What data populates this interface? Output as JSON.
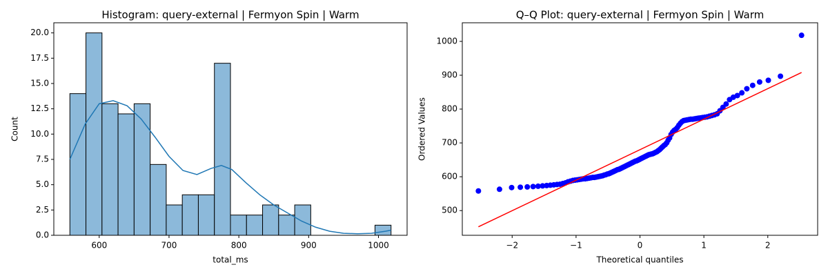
{
  "chart_data": [
    {
      "type": "histogram",
      "title": "Histogram: query-external | Fermyon Spin | Warm",
      "x_label": "total_ms",
      "y_label": "Count",
      "bins": [
        558,
        581,
        604,
        627,
        650,
        673,
        696,
        719,
        742,
        765,
        788,
        811,
        834,
        857,
        880,
        903,
        926,
        949,
        972,
        995,
        1018
      ],
      "values": [
        14,
        20,
        13,
        12,
        13,
        7,
        3,
        4,
        4,
        17,
        2,
        2,
        3,
        2,
        3,
        0,
        0,
        0,
        0,
        1
      ],
      "color": "#8cb9da",
      "edge_color": "#000000",
      "kde": {
        "color": "#1f77b4",
        "x": [
          558,
          580,
          600,
          620,
          640,
          660,
          680,
          700,
          720,
          740,
          760,
          775,
          790,
          810,
          830,
          850,
          870,
          890,
          910,
          930,
          950,
          970,
          990,
          1010,
          1018
        ],
        "y": [
          7.5,
          11,
          13,
          13.3,
          12.8,
          11.5,
          9.7,
          7.8,
          6.4,
          6.0,
          6.6,
          6.9,
          6.5,
          5.2,
          4.0,
          3.0,
          2.2,
          1.4,
          0.8,
          0.4,
          0.2,
          0.15,
          0.2,
          0.4,
          0.5
        ]
      },
      "xlim": [
        535,
        1041
      ],
      "xticks": [
        600,
        700,
        800,
        900,
        1000
      ],
      "ylim": [
        0,
        21
      ],
      "yticks": [
        {
          "value": 0,
          "label": "0.0"
        },
        {
          "value": 2.5,
          "label": "2.5"
        },
        {
          "value": 5,
          "label": "5.0"
        },
        {
          "value": 7.5,
          "label": "7.5"
        },
        {
          "value": 10,
          "label": "10.0"
        },
        {
          "value": 12.5,
          "label": "12.5"
        },
        {
          "value": 15,
          "label": "15.0"
        },
        {
          "value": 17.5,
          "label": "17.5"
        },
        {
          "value": 20,
          "label": "20.0"
        }
      ]
    },
    {
      "type": "scatter",
      "title": "Q–Q Plot: query-external | Fermyon Spin | Warm",
      "x_label": "Theoretical quantiles",
      "y_label": "Ordered Values",
      "color": "#0000ff",
      "x": [
        -2.528,
        -2.198,
        -2.008,
        -1.872,
        -1.763,
        -1.672,
        -1.594,
        -1.524,
        -1.46,
        -1.402,
        -1.348,
        -1.298,
        -1.251,
        -1.207,
        -1.165,
        -1.125,
        -1.087,
        -1.05,
        -1.014,
        -0.98,
        -0.947,
        -0.915,
        -0.884,
        -0.854,
        -0.824,
        -0.795,
        -0.767,
        -0.739,
        -0.712,
        -0.685,
        -0.659,
        -0.633,
        -0.608,
        -0.583,
        -0.559,
        -0.535,
        -0.511,
        -0.487,
        -0.464,
        -0.441,
        -0.418,
        -0.395,
        -0.373,
        -0.351,
        -0.329,
        -0.307,
        -0.285,
        -0.264,
        -0.242,
        -0.221,
        -0.2,
        -0.178,
        -0.157,
        -0.136,
        -0.115,
        -0.094,
        -0.073,
        -0.052,
        -0.031,
        -0.01,
        0.01,
        0.031,
        0.052,
        0.073,
        0.094,
        0.115,
        0.136,
        0.157,
        0.178,
        0.2,
        0.221,
        0.242,
        0.264,
        0.285,
        0.307,
        0.329,
        0.351,
        0.373,
        0.395,
        0.418,
        0.441,
        0.464,
        0.487,
        0.511,
        0.535,
        0.559,
        0.583,
        0.608,
        0.633,
        0.659,
        0.685,
        0.712,
        0.739,
        0.767,
        0.795,
        0.824,
        0.854,
        0.884,
        0.915,
        0.947,
        0.98,
        1.014,
        1.05,
        1.087,
        1.125,
        1.165,
        1.207,
        1.251,
        1.298,
        1.348,
        1.402,
        1.46,
        1.524,
        1.594,
        1.672,
        1.763,
        1.872,
        2.008,
        2.198,
        2.528
      ],
      "values": [
        558,
        563,
        568,
        569,
        570,
        571,
        572,
        573,
        574,
        575,
        576,
        577,
        578,
        580,
        582,
        585,
        587,
        589,
        590,
        591,
        592,
        593,
        594,
        594,
        595,
        596,
        597,
        598,
        598,
        599,
        600,
        601,
        602,
        603,
        605,
        606,
        608,
        609,
        611,
        613,
        615,
        617,
        619,
        621,
        622,
        624,
        626,
        628,
        630,
        632,
        634,
        636,
        638,
        640,
        642,
        644,
        646,
        647,
        649,
        651,
        653,
        655,
        657,
        659,
        661,
        663,
        665,
        666,
        667,
        668,
        670,
        672,
        674,
        677,
        680,
        684,
        688,
        692,
        695,
        700,
        708,
        715,
        725,
        732,
        737,
        740,
        745,
        752,
        758,
        763,
        766,
        767,
        768,
        769,
        770,
        770,
        771,
        772,
        773,
        774,
        775,
        776,
        777,
        779,
        781,
        783,
        786,
        795,
        805,
        815,
        828,
        835,
        840,
        848,
        860,
        870,
        880,
        885,
        897,
        1018
      ],
      "fit": {
        "color": "#ff0000",
        "x": [
          -2.528,
          2.528
        ],
        "y": [
          452,
          908
        ]
      },
      "xlim": [
        -2.78,
        2.78
      ],
      "xticks": [
        {
          "value": -2,
          "label": "−2"
        },
        {
          "value": -1,
          "label": "−1"
        },
        0,
        1,
        2
      ],
      "ylim": [
        427,
        1055
      ],
      "yticks": [
        500,
        600,
        700,
        800,
        900,
        1000
      ]
    }
  ]
}
